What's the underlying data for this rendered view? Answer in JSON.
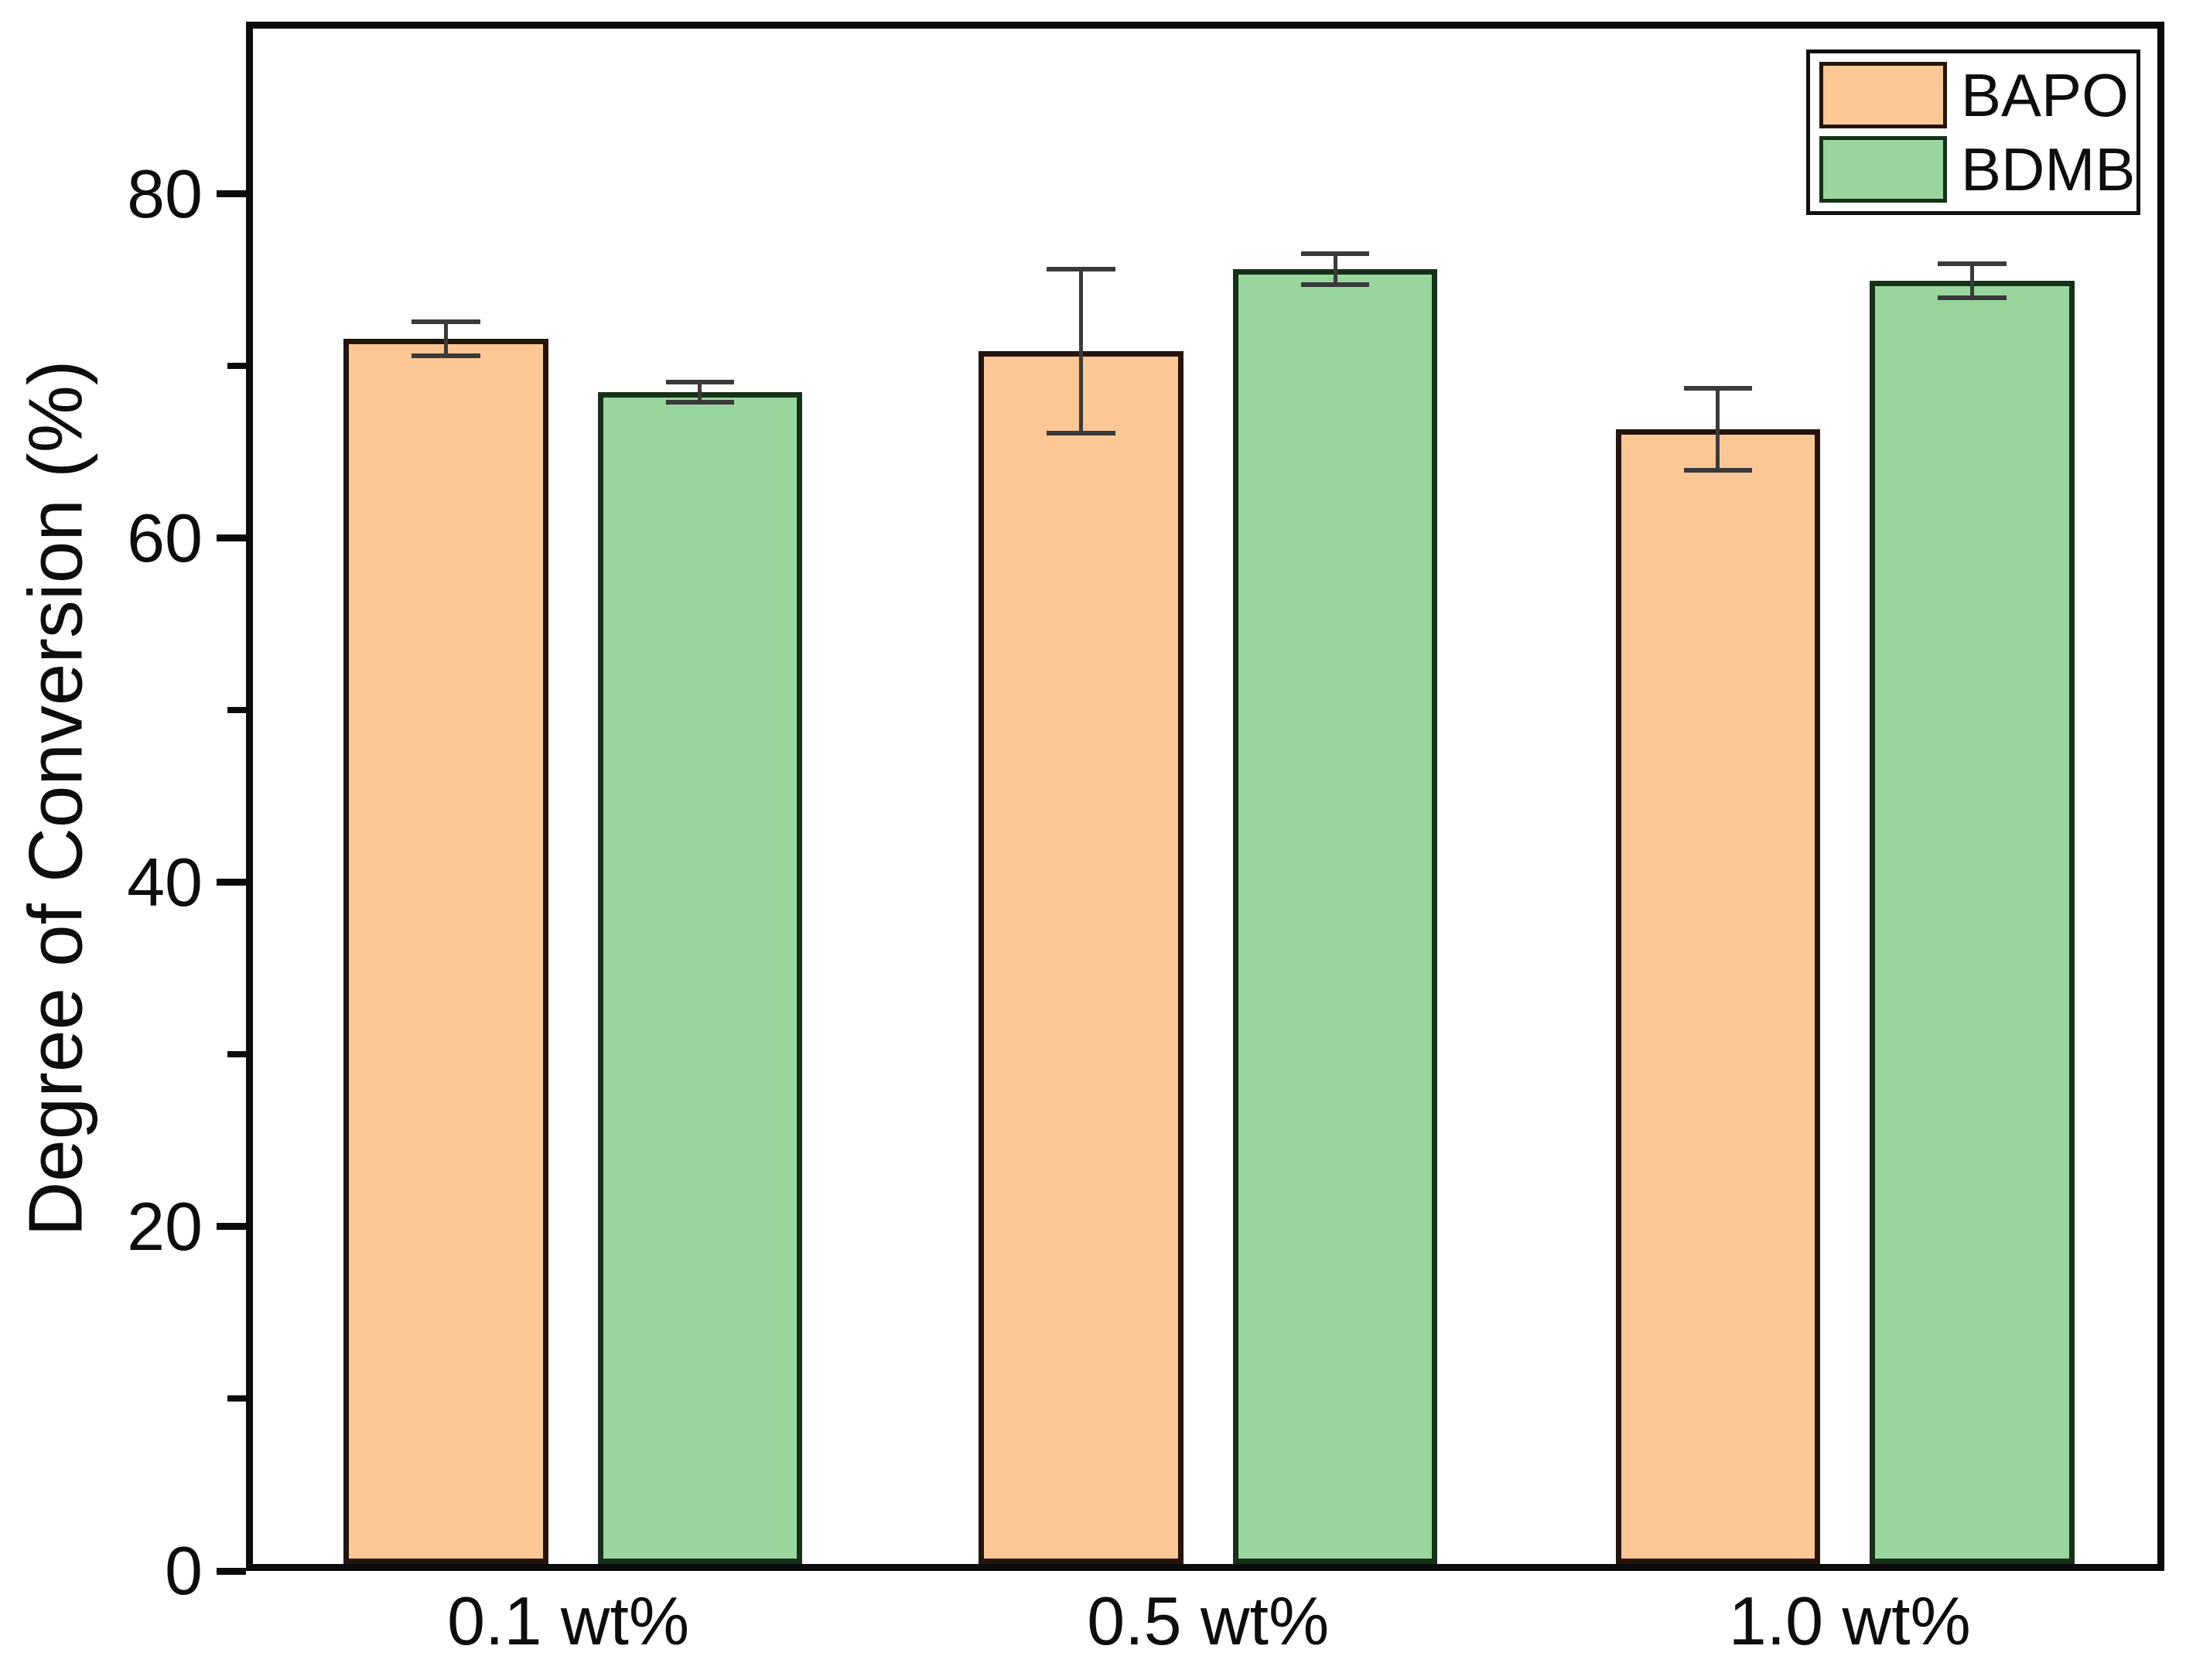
{
  "figure": {
    "background": "#ffffff",
    "axis_color": "#0b0b0b",
    "error_bar_color": "#3a3a3a"
  },
  "chart_data": {
    "type": "bar",
    "title": "",
    "xlabel": "",
    "ylabel": "Degree of Conversion (%)",
    "ylim": [
      0,
      90
    ],
    "yticks_major": [
      0,
      20,
      40,
      60,
      80
    ],
    "yticks_minor": [
      10,
      30,
      50,
      70
    ],
    "grid": false,
    "legend_position": "top-right",
    "categories": [
      "0.1 wt%",
      "0.5 wt%",
      "1.0 wt%"
    ],
    "series": [
      {
        "name": "BAPO",
        "fill_color": "#FBC795",
        "border_color": "#241409",
        "values": [
          71.8,
          71.1,
          66.5
        ],
        "errors": [
          1.0,
          4.8,
          2.4
        ]
      },
      {
        "name": "BDMB",
        "fill_color": "#99D69E",
        "border_color": "#16301A",
        "values": [
          68.7,
          75.9,
          75.2
        ],
        "errors": [
          0.6,
          0.9,
          1.0
        ]
      }
    ]
  }
}
